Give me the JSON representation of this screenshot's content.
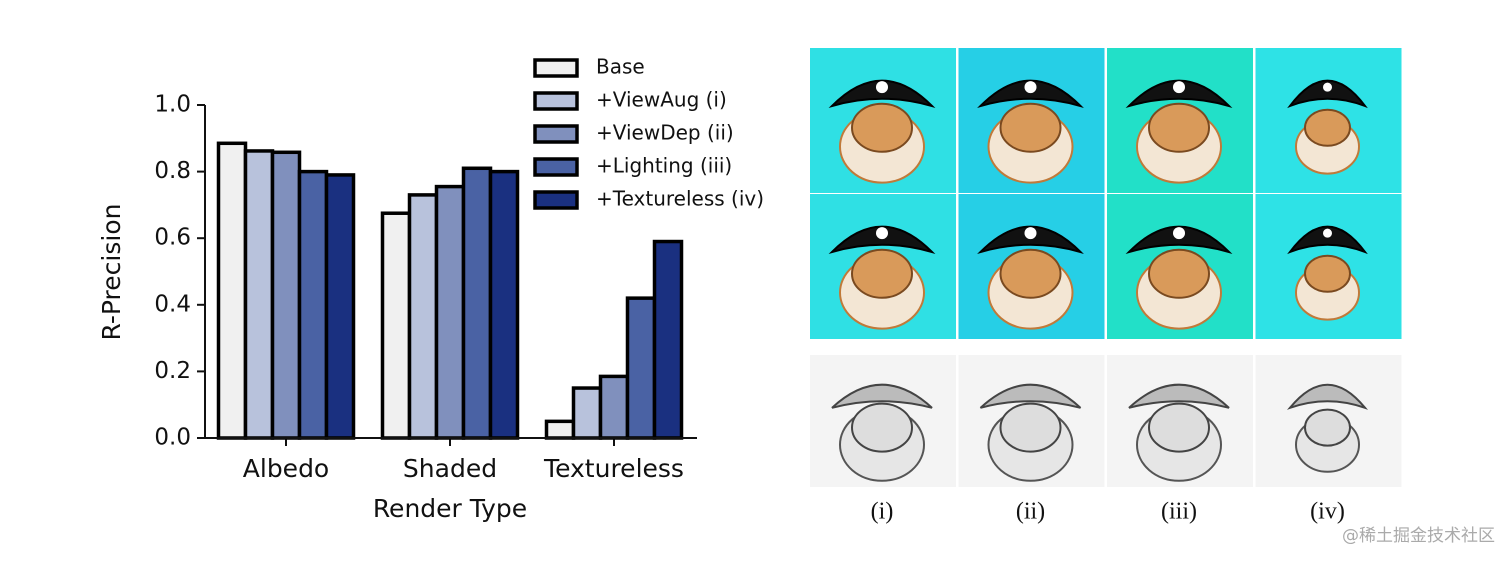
{
  "chart_data": {
    "type": "bar",
    "xlabel": "Render Type",
    "ylabel": "R-Precision",
    "categories": [
      "Albedo",
      "Shaded",
      "Textureless"
    ],
    "series": [
      {
        "name": "Base",
        "color": "#f0f0f0",
        "values": [
          0.885,
          0.675,
          0.05
        ]
      },
      {
        "name": "+ViewAug (i)",
        "color": "#b8c2dc",
        "values": [
          0.862,
          0.73,
          0.15
        ]
      },
      {
        "name": "+ViewDep (ii)",
        "color": "#8090bd",
        "values": [
          0.858,
          0.755,
          0.185
        ]
      },
      {
        "name": "+Lighting (iii)",
        "color": "#4a62a4",
        "values": [
          0.8,
          0.81,
          0.42
        ]
      },
      {
        "name": "+Textureless (iv)",
        "color": "#1a3080",
        "values": [
          0.79,
          0.8,
          0.59
        ]
      }
    ],
    "ylim": [
      0,
      1
    ],
    "yticks": [
      {
        "value": 0,
        "label": "0.0"
      },
      0.2,
      0.4,
      0.6,
      0.8,
      {
        "value": 1,
        "label": "1.0"
      }
    ],
    "legend": "upper right"
  },
  "figure_panel": {
    "labels": [
      "(i)",
      "(ii)",
      "(iii)",
      "(iv)"
    ]
  },
  "watermark": "@稀土掘金技术社区"
}
